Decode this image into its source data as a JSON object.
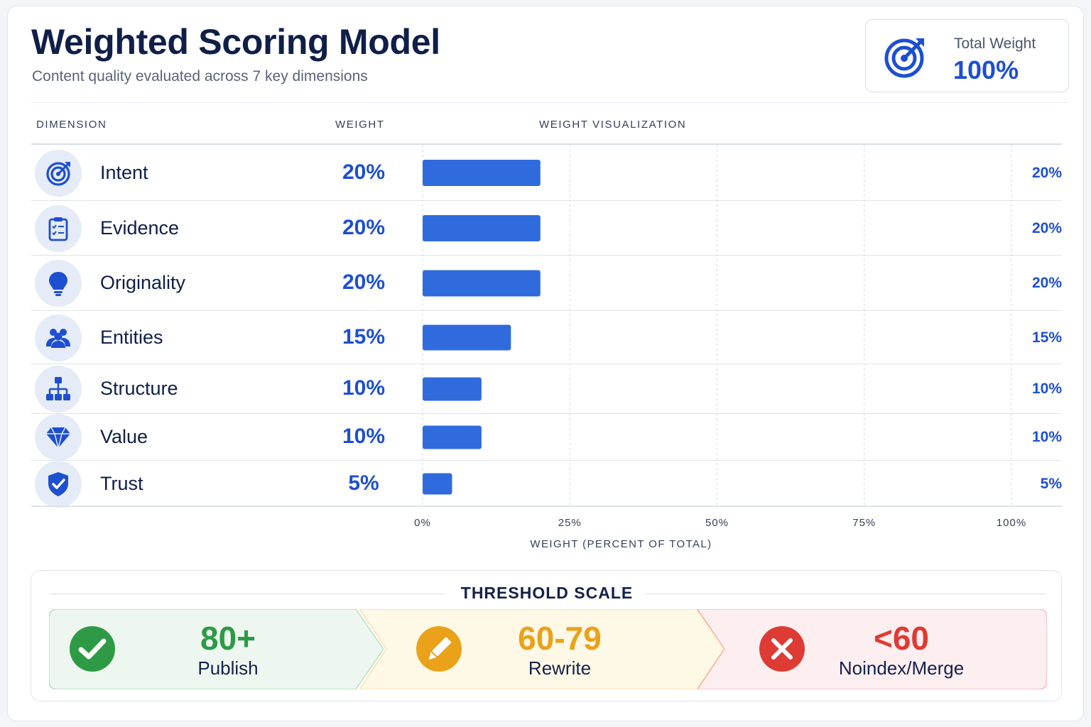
{
  "header": {
    "title": "Weighted Scoring Model",
    "subtitle": "Content quality evaluated across 7 key dimensions",
    "total_label": "Total Weight",
    "total_value": "100%"
  },
  "table": {
    "col_dimension": "DIMENSION",
    "col_weight": "WEIGHT",
    "col_visualization": "WEIGHT VISUALIZATION"
  },
  "chart_data": {
    "type": "bar",
    "orientation": "horizontal",
    "categories": [
      "Intent",
      "Evidence",
      "Originality",
      "Entities",
      "Structure",
      "Value",
      "Trust"
    ],
    "values": [
      20,
      20,
      20,
      15,
      10,
      10,
      5
    ],
    "value_labels": [
      "20%",
      "20%",
      "20%",
      "15%",
      "10%",
      "10%",
      "5%"
    ],
    "icons": [
      "target-icon",
      "clipboard-check-icon",
      "lightbulb-icon",
      "people-icon",
      "hierarchy-icon",
      "diamond-icon",
      "shield-check-icon"
    ],
    "xlim": [
      0,
      100
    ],
    "xticks": [
      "0%",
      "25%",
      "50%",
      "75%",
      "100%"
    ],
    "xlabel": "WEIGHT (PERCENT OF TOTAL)",
    "grid": "vertical-dashed",
    "bar_color": "#2f6bdc"
  },
  "threshold": {
    "title": "THRESHOLD SCALE",
    "segments": [
      {
        "value": "80+",
        "label": "Publish",
        "icon": "check-circle-icon",
        "color": "#2e9a46",
        "bg": "#eef7ef"
      },
      {
        "value": "60-79",
        "label": "Rewrite",
        "icon": "pencil-circle-icon",
        "color": "#eaa21a",
        "bg": "#fef8e6"
      },
      {
        "value": "<60",
        "label": "Noindex/Merge",
        "icon": "x-circle-icon",
        "color": "#de3b34",
        "bg": "#fdeef0"
      }
    ]
  },
  "colors": {
    "accent": "#1d4fd0",
    "bar": "#2f6bdc",
    "title": "#0f1f48"
  }
}
